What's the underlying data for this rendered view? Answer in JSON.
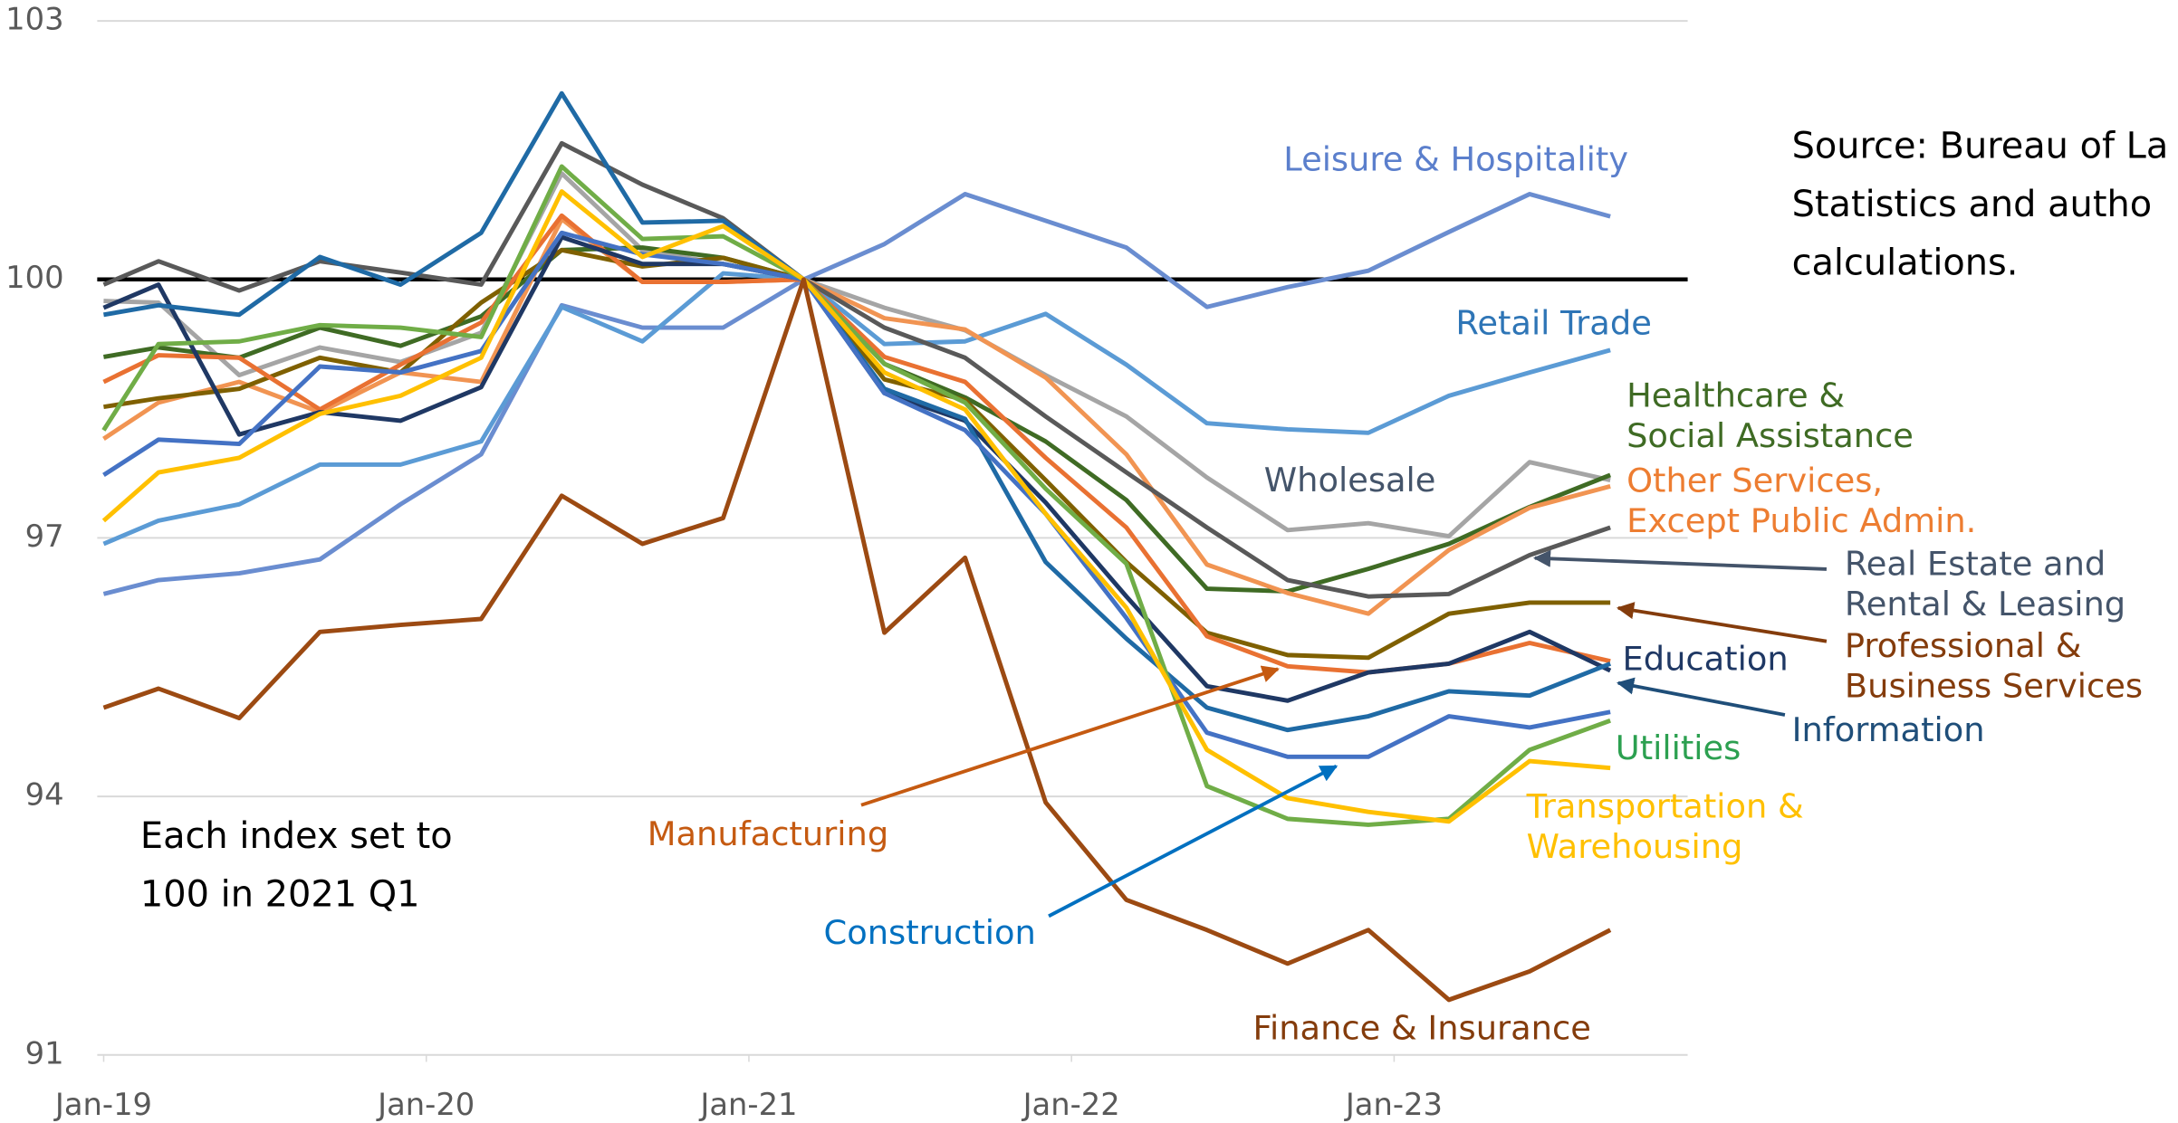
{
  "chart_data": {
    "type": "line",
    "x": [
      2019,
      2019.17,
      2019.42,
      2019.67,
      2019.92,
      2020.17,
      2020.42,
      2020.67,
      2020.92,
      2021.17,
      2021.42,
      2021.67,
      2021.92,
      2022.17,
      2022.42,
      2022.67,
      2022.92,
      2023.17,
      2023.42,
      2023.67
    ],
    "xlim": [
      2018.98,
      2023.91
    ],
    "xticks": [
      {
        "value": 2019,
        "label": "Jan-19"
      },
      {
        "value": 2020,
        "label": "Jan-20"
      },
      {
        "value": 2021,
        "label": "Jan-21"
      },
      {
        "value": 2022,
        "label": "Jan-22"
      },
      {
        "value": 2023,
        "label": "Jan-23"
      }
    ],
    "ylim": [
      91,
      103
    ],
    "yticks": [
      91,
      94,
      97,
      100,
      103
    ],
    "grid": true,
    "reference_line": 100,
    "annotation": [
      "Each index set to",
      "100 in 2021 Q1"
    ],
    "source": [
      "Source: Bureau of La",
      "Statistics and autho",
      "calculations."
    ],
    "series": [
      {
        "name": "Leisure & Hospitality",
        "color": "#6a8dd0",
        "label_color": "#5b7fcc",
        "values": [
          96.35,
          96.51,
          96.59,
          96.75,
          97.39,
          97.97,
          99.7,
          99.44,
          99.44,
          100,
          100.41,
          100.99,
          100.68,
          100.37,
          99.68,
          99.91,
          100.1,
          100.55,
          100.99,
          100.73
        ]
      },
      {
        "name": "Retail Trade",
        "color": "#5b9bd5",
        "label_color": "#2e75b6",
        "values": [
          96.93,
          97.2,
          97.39,
          97.85,
          97.85,
          98.12,
          99.68,
          99.28,
          100.07,
          100,
          99.25,
          99.28,
          99.6,
          99.01,
          98.33,
          98.26,
          98.22,
          98.65,
          98.92,
          99.18
        ]
      },
      {
        "name": "Wholesale",
        "color": "#a5a5a5",
        "label_color": "#44546a",
        "values": [
          99.75,
          99.73,
          98.89,
          99.21,
          99.04,
          99.38,
          101.23,
          100.34,
          100.18,
          100,
          99.67,
          99.41,
          98.89,
          98.41,
          97.7,
          97.09,
          97.17,
          97.02,
          97.88,
          97.67
        ]
      },
      {
        "name": "Healthcare & Social Assistance",
        "color": "#3f6b24",
        "label_color": "#3f6b24",
        "values": [
          99.1,
          99.21,
          99.09,
          99.44,
          99.23,
          99.57,
          100.34,
          100.37,
          100.25,
          100,
          99.02,
          98.63,
          98.12,
          97.44,
          96.41,
          96.38,
          96.64,
          96.93,
          97.36,
          97.73
        ]
      },
      {
        "name": "Other Services, Except Public Admin.",
        "color": "#f19452",
        "label_color": "#ed7d31",
        "values": [
          98.15,
          98.57,
          98.81,
          98.46,
          98.92,
          98.81,
          100.7,
          99.97,
          99.97,
          100,
          99.55,
          99.42,
          98.86,
          97.97,
          96.69,
          96.36,
          96.12,
          96.86,
          97.35,
          97.6
        ]
      },
      {
        "name": "Real Estate and Rental & Leasing",
        "color": "#595959",
        "label_color": "#44546a",
        "values": [
          99.94,
          100.21,
          99.87,
          100.21,
          100.08,
          99.94,
          101.58,
          101.1,
          100.71,
          100,
          99.44,
          99.09,
          98.41,
          97.76,
          97.12,
          96.51,
          96.32,
          96.35,
          96.8,
          97.12
        ]
      },
      {
        "name": "Professional & Business Services",
        "color": "#7f6000",
        "label_color": "#843c0c",
        "values": [
          98.52,
          98.62,
          98.73,
          99.09,
          98.92,
          99.73,
          100.34,
          100.15,
          100.25,
          100,
          98.84,
          98.6,
          97.67,
          96.72,
          95.9,
          95.64,
          95.61,
          96.12,
          96.25,
          96.25
        ]
      },
      {
        "name": "Manufacturing",
        "color": "#e97132",
        "label_color": "#c55a11",
        "values": [
          98.81,
          99.12,
          99.09,
          98.49,
          99.01,
          99.5,
          100.74,
          99.97,
          99.97,
          100,
          99.1,
          98.81,
          97.93,
          97.12,
          95.86,
          95.51,
          95.44,
          95.54,
          95.78,
          95.57
        ]
      },
      {
        "name": "Education",
        "color": "#1f3864",
        "label_color": "#1f3864",
        "values": [
          99.67,
          99.94,
          98.2,
          98.46,
          98.36,
          98.75,
          100.49,
          100.18,
          100.18,
          100,
          98.68,
          98.36,
          97.41,
          96.32,
          95.28,
          95.11,
          95.44,
          95.54,
          95.91,
          95.46
        ]
      },
      {
        "name": "Construction",
        "color": "#1f6aa5",
        "label_color": "#0070c0",
        "values": [
          99.59,
          99.7,
          99.59,
          100.26,
          99.94,
          100.54,
          102.16,
          100.66,
          100.68,
          100,
          98.73,
          98.38,
          96.72,
          95.83,
          95.03,
          94.77,
          94.93,
          95.22,
          95.17,
          95.54
        ]
      },
      {
        "name": "Information",
        "color": "#4472c4",
        "label_color": "#1f4e79",
        "values": [
          97.73,
          98.14,
          98.09,
          98.99,
          98.92,
          99.17,
          100.54,
          100.29,
          100.18,
          100,
          98.68,
          98.25,
          97.28,
          96.07,
          94.74,
          94.46,
          94.46,
          94.93,
          94.8,
          94.98
        ]
      },
      {
        "name": "Utilities",
        "color": "#70ad47",
        "label_color": "#2ca050",
        "values": [
          98.25,
          99.25,
          99.28,
          99.47,
          99.44,
          99.33,
          101.31,
          100.47,
          100.5,
          100,
          99.02,
          98.57,
          97.57,
          96.7,
          94.12,
          93.74,
          93.67,
          93.74,
          94.54,
          94.88
        ]
      },
      {
        "name": "Transportation & Warehousing",
        "color": "#ffc000",
        "label_color": "#ffc000",
        "values": [
          97.2,
          97.76,
          97.93,
          98.44,
          98.65,
          99.09,
          101.02,
          100.26,
          100.62,
          100,
          98.92,
          98.49,
          97.28,
          96.19,
          94.54,
          93.98,
          93.82,
          93.71,
          94.41,
          94.33
        ]
      },
      {
        "name": "Finance & Insurance",
        "color": "#9c4a12",
        "label_color": "#843c0c",
        "values": [
          95.03,
          95.25,
          94.91,
          95.91,
          95.99,
          96.06,
          97.49,
          96.93,
          97.23,
          100,
          95.9,
          96.77,
          93.93,
          92.8,
          92.45,
          92.06,
          92.45,
          91.64,
          91.97,
          92.45
        ]
      }
    ]
  }
}
